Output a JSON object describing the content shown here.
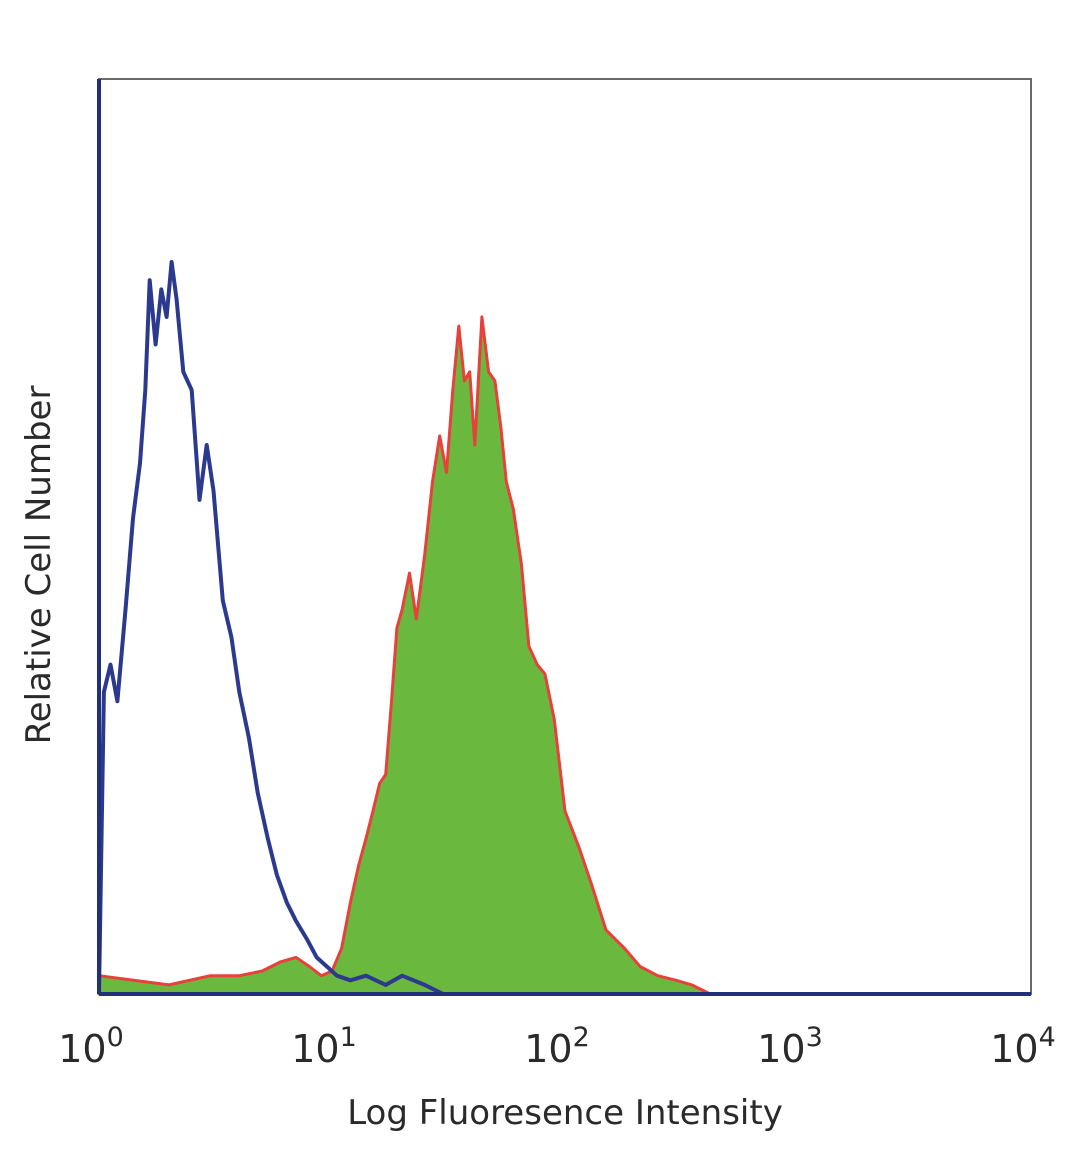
{
  "chart_data": {
    "type": "area",
    "xlabel": "Log Fluoresence Intensity",
    "ylabel": "Relative Cell Number",
    "x_scale": "log",
    "xlim": [
      1,
      10000
    ],
    "ylim": [
      0,
      100
    ],
    "grid": false,
    "legend": "none",
    "x_ticks": [
      {
        "value": 1,
        "base": "10",
        "exp": "0"
      },
      {
        "value": 10,
        "base": "10",
        "exp": "1"
      },
      {
        "value": 100,
        "base": "10",
        "exp": "2"
      },
      {
        "value": 1000,
        "base": "10",
        "exp": "3"
      },
      {
        "value": 10000,
        "base": "10",
        "exp": "4"
      }
    ],
    "series": [
      {
        "style": "line",
        "color": "#2b3a8f",
        "x": [
          1.0,
          1.05,
          1.12,
          1.2,
          1.3,
          1.4,
          1.5,
          1.58,
          1.65,
          1.75,
          1.85,
          1.95,
          2.05,
          2.15,
          2.3,
          2.5,
          2.7,
          2.9,
          3.1,
          3.4,
          3.7,
          4.0,
          4.4,
          4.8,
          5.3,
          5.8,
          6.4,
          7.0,
          7.8,
          8.6,
          9.5,
          10.5,
          12.0,
          14.0,
          17.0,
          20.0,
          25.0,
          30.0
        ],
        "y": [
          0,
          33,
          36,
          32,
          42,
          52,
          58,
          66,
          78,
          71,
          77,
          74,
          80,
          76,
          68,
          66,
          54,
          60,
          55,
          43,
          39,
          33,
          28,
          22,
          17,
          13,
          10,
          8,
          6,
          4,
          3,
          2,
          1.5,
          2,
          1,
          2,
          1,
          0
        ]
      },
      {
        "style": "filled",
        "color": "#6bb83f",
        "edge_color": "#e8403a",
        "x": [
          1.0,
          2.0,
          3.0,
          4.0,
          5.0,
          6.0,
          7.0,
          8.0,
          9.0,
          10.0,
          11.0,
          12.0,
          13.0,
          14.0,
          15.0,
          16.0,
          17.0,
          18.0,
          19.0,
          20.0,
          21.5,
          23.0,
          25.0,
          27.0,
          29.0,
          31.0,
          33.0,
          35.0,
          37.0,
          39.0,
          41.0,
          44.0,
          47.0,
          50.0,
          53.0,
          56.0,
          60.0,
          65.0,
          70.0,
          76.0,
          82.0,
          90.0,
          100.0,
          115.0,
          130.0,
          150.0,
          180.0,
          210.0,
          250.0,
          300.0,
          350.0,
          420.0
        ],
        "y": [
          2,
          1,
          2,
          2,
          2.5,
          3.5,
          4,
          3,
          2,
          2.5,
          5,
          10,
          14,
          17,
          20,
          23,
          24,
          32,
          40,
          42,
          46,
          41,
          48,
          56,
          61,
          57,
          66,
          73,
          67,
          68,
          60,
          74,
          68,
          67,
          62,
          56,
          53,
          47,
          38,
          36,
          35,
          30,
          20,
          16,
          12,
          7,
          5,
          3,
          2,
          1.5,
          1,
          0
        ]
      }
    ]
  }
}
